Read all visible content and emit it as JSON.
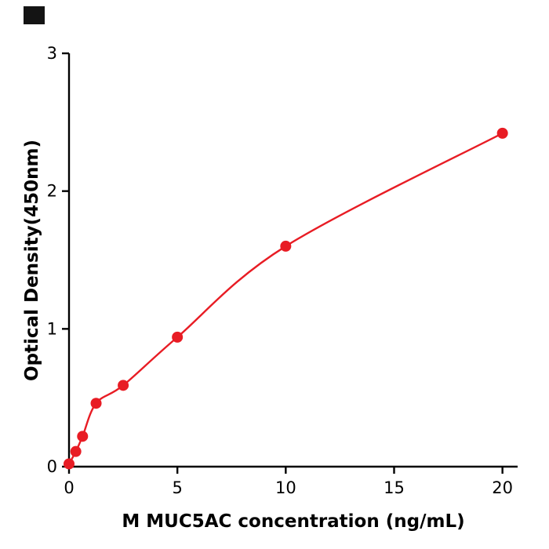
{
  "chart_data": {
    "type": "scatter",
    "title": "",
    "xlabel": "M  MUC5AC concentration (ng/mL)",
    "ylabel": "Optical Density(450nm)",
    "x": [
      0,
      0.313,
      0.625,
      1.25,
      2.5,
      5,
      10,
      20
    ],
    "y": [
      0.02,
      0.11,
      0.22,
      0.46,
      0.59,
      0.94,
      1.6,
      2.42
    ],
    "xticks": [
      0,
      5,
      10,
      15,
      20
    ],
    "yticks": [
      0,
      1,
      2,
      3
    ],
    "xlim": [
      0,
      20.7
    ],
    "ylim": [
      0,
      3
    ],
    "grid": false,
    "legend": "none",
    "fit_line": true,
    "point_color": "#e81c24",
    "line_color": "#e81c24",
    "axis_color": "#000000",
    "marker_radius": 7,
    "line_width": 2.4,
    "axis_width": 2.4
  }
}
